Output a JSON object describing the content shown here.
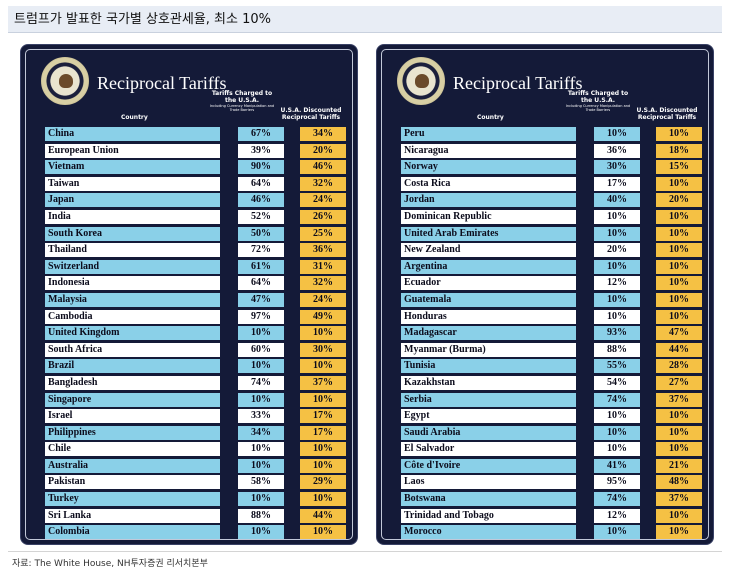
{
  "title": "트럼프가 발표한 국가별 상호관세율, 최소 10%",
  "source": "자료: The White House, NH투자증권 리서치본부",
  "colors": {
    "panel_bg": "#141a38",
    "row_blue": "#8ad0e8",
    "row_white": "#ffffff",
    "discount_cell": "#f5c144"
  },
  "panels": [
    {
      "heading": "Reciprocal Tariffs",
      "col_country": "Country",
      "col_charged": "Tariffs Charged to the U.S.A.",
      "col_charged_sub": "Including Currency Manipulation and Trade Barriers",
      "col_discount": "U.S.A. Discounted Reciprocal Tariffs",
      "rows": [
        {
          "country": "China",
          "charged": "67%",
          "discounted": "34%"
        },
        {
          "country": "European Union",
          "charged": "39%",
          "discounted": "20%"
        },
        {
          "country": "Vietnam",
          "charged": "90%",
          "discounted": "46%"
        },
        {
          "country": "Taiwan",
          "charged": "64%",
          "discounted": "32%"
        },
        {
          "country": "Japan",
          "charged": "46%",
          "discounted": "24%"
        },
        {
          "country": "India",
          "charged": "52%",
          "discounted": "26%"
        },
        {
          "country": "South Korea",
          "charged": "50%",
          "discounted": "25%"
        },
        {
          "country": "Thailand",
          "charged": "72%",
          "discounted": "36%"
        },
        {
          "country": "Switzerland",
          "charged": "61%",
          "discounted": "31%"
        },
        {
          "country": "Indonesia",
          "charged": "64%",
          "discounted": "32%"
        },
        {
          "country": "Malaysia",
          "charged": "47%",
          "discounted": "24%"
        },
        {
          "country": "Cambodia",
          "charged": "97%",
          "discounted": "49%"
        },
        {
          "country": "United Kingdom",
          "charged": "10%",
          "discounted": "10%"
        },
        {
          "country": "South Africa",
          "charged": "60%",
          "discounted": "30%"
        },
        {
          "country": "Brazil",
          "charged": "10%",
          "discounted": "10%"
        },
        {
          "country": "Bangladesh",
          "charged": "74%",
          "discounted": "37%"
        },
        {
          "country": "Singapore",
          "charged": "10%",
          "discounted": "10%"
        },
        {
          "country": "Israel",
          "charged": "33%",
          "discounted": "17%"
        },
        {
          "country": "Philippines",
          "charged": "34%",
          "discounted": "17%"
        },
        {
          "country": "Chile",
          "charged": "10%",
          "discounted": "10%"
        },
        {
          "country": "Australia",
          "charged": "10%",
          "discounted": "10%"
        },
        {
          "country": "Pakistan",
          "charged": "58%",
          "discounted": "29%"
        },
        {
          "country": "Turkey",
          "charged": "10%",
          "discounted": "10%"
        },
        {
          "country": "Sri Lanka",
          "charged": "88%",
          "discounted": "44%"
        },
        {
          "country": "Colombia",
          "charged": "10%",
          "discounted": "10%"
        }
      ]
    },
    {
      "heading": "Reciprocal Tariffs",
      "col_country": "Country",
      "col_charged": "Tariffs Charged to the U.S.A.",
      "col_charged_sub": "Including Currency Manipulation and Trade Barriers",
      "col_discount": "U.S.A. Discounted Reciprocal Tariffs",
      "rows": [
        {
          "country": "Peru",
          "charged": "10%",
          "discounted": "10%"
        },
        {
          "country": "Nicaragua",
          "charged": "36%",
          "discounted": "18%"
        },
        {
          "country": "Norway",
          "charged": "30%",
          "discounted": "15%"
        },
        {
          "country": "Costa Rica",
          "charged": "17%",
          "discounted": "10%"
        },
        {
          "country": "Jordan",
          "charged": "40%",
          "discounted": "20%"
        },
        {
          "country": "Dominican Republic",
          "charged": "10%",
          "discounted": "10%"
        },
        {
          "country": "United Arab Emirates",
          "charged": "10%",
          "discounted": "10%"
        },
        {
          "country": "New Zealand",
          "charged": "20%",
          "discounted": "10%"
        },
        {
          "country": "Argentina",
          "charged": "10%",
          "discounted": "10%"
        },
        {
          "country": "Ecuador",
          "charged": "12%",
          "discounted": "10%"
        },
        {
          "country": "Guatemala",
          "charged": "10%",
          "discounted": "10%"
        },
        {
          "country": "Honduras",
          "charged": "10%",
          "discounted": "10%"
        },
        {
          "country": "Madagascar",
          "charged": "93%",
          "discounted": "47%"
        },
        {
          "country": "Myanmar (Burma)",
          "charged": "88%",
          "discounted": "44%"
        },
        {
          "country": "Tunisia",
          "charged": "55%",
          "discounted": "28%"
        },
        {
          "country": "Kazakhstan",
          "charged": "54%",
          "discounted": "27%"
        },
        {
          "country": "Serbia",
          "charged": "74%",
          "discounted": "37%"
        },
        {
          "country": "Egypt",
          "charged": "10%",
          "discounted": "10%"
        },
        {
          "country": "Saudi Arabia",
          "charged": "10%",
          "discounted": "10%"
        },
        {
          "country": "El Salvador",
          "charged": "10%",
          "discounted": "10%"
        },
        {
          "country": "Côte d'Ivoire",
          "charged": "41%",
          "discounted": "21%"
        },
        {
          "country": "Laos",
          "charged": "95%",
          "discounted": "48%"
        },
        {
          "country": "Botswana",
          "charged": "74%",
          "discounted": "37%"
        },
        {
          "country": "Trinidad and Tobago",
          "charged": "12%",
          "discounted": "10%"
        },
        {
          "country": "Morocco",
          "charged": "10%",
          "discounted": "10%"
        }
      ]
    }
  ]
}
